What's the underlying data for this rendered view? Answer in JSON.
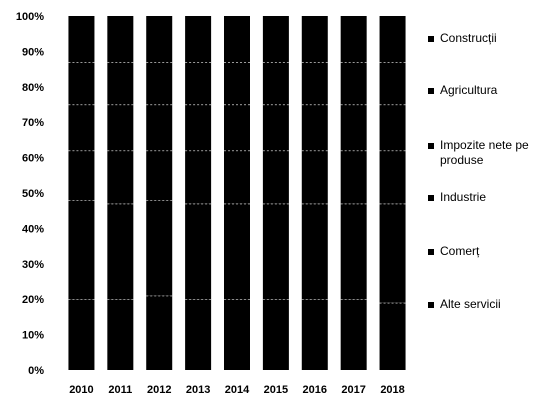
{
  "chart_data": {
    "type": "bar",
    "stacked": "percent",
    "categories": [
      "2010",
      "2011",
      "2012",
      "2013",
      "2014",
      "2015",
      "2016",
      "2017",
      "2018"
    ],
    "y_ticks": [
      "0%",
      "10%",
      "20%",
      "30%",
      "40%",
      "50%",
      "60%",
      "70%",
      "80%",
      "90%",
      "100%"
    ],
    "ylim": [
      0,
      100
    ],
    "title": "",
    "xlabel": "",
    "ylabel": "",
    "grid": false,
    "legend_position": "right",
    "series": [
      {
        "name": "Construcții",
        "color": "#000000",
        "values": [
          13,
          13,
          13,
          13,
          13,
          13,
          13,
          13,
          13
        ]
      },
      {
        "name": "Agricultura",
        "color": "#000000",
        "values": [
          12,
          12,
          12,
          12,
          12,
          12,
          12,
          12,
          12
        ]
      },
      {
        "name": "Impozite nete pe produse",
        "color": "#000000",
        "values": [
          13,
          13,
          13,
          13,
          13,
          13,
          13,
          13,
          13
        ]
      },
      {
        "name": "Industrie",
        "color": "#000000",
        "values": [
          14,
          15,
          14,
          15,
          15,
          15,
          15,
          15,
          15
        ]
      },
      {
        "name": "Comerț",
        "color": "#000000",
        "values": [
          28,
          27,
          27,
          27,
          27,
          27,
          27,
          27,
          28
        ]
      },
      {
        "name": "Alte servicii",
        "color": "#000000",
        "values": [
          20,
          20,
          21,
          20,
          20,
          20,
          20,
          20,
          19
        ]
      }
    ]
  }
}
